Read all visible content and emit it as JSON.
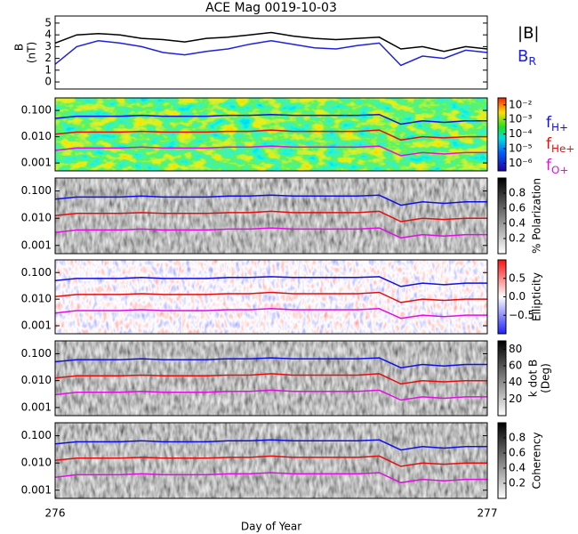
{
  "title": "ACE Mag 0019-10-03",
  "xlabel": "Day of Year",
  "xlim": [
    276,
    277
  ],
  "xticks": [
    276,
    277
  ],
  "x": [
    276.0,
    276.05,
    276.1,
    276.15,
    276.2,
    276.25,
    276.3,
    276.35,
    276.4,
    276.45,
    276.5,
    276.55,
    276.6,
    276.65,
    276.7,
    276.75,
    276.8,
    276.85,
    276.9,
    276.95,
    277.0
  ],
  "field": {
    "type": "line",
    "ylabel": "B",
    "yunit": "(nT)",
    "ylim": [
      -0.6,
      5.6
    ],
    "yticks": [
      0,
      1,
      2,
      3,
      4,
      5
    ],
    "series": [
      {
        "name": "|B|",
        "color": "#000000",
        "values": [
          3.3,
          4.0,
          4.1,
          4.0,
          3.7,
          3.6,
          3.4,
          3.7,
          3.8,
          4.0,
          4.2,
          3.9,
          3.7,
          3.6,
          3.7,
          3.8,
          2.8,
          3.0,
          2.6,
          3.0,
          2.8
        ]
      },
      {
        "name": "B",
        "subscript": "R",
        "color": "#2020e0",
        "values": [
          1.5,
          3.0,
          3.5,
          3.3,
          3.0,
          2.5,
          2.3,
          2.6,
          2.8,
          3.2,
          3.5,
          3.2,
          2.9,
          2.8,
          3.1,
          3.3,
          1.4,
          2.2,
          2.0,
          2.7,
          2.5
        ]
      }
    ]
  },
  "frequency": {
    "log": true,
    "ylim": [
      0.0005,
      0.3
    ],
    "yticks": [
      {
        "value": 0.1,
        "label": "0.100"
      },
      {
        "value": 0.01,
        "label": "0.010"
      },
      {
        "value": 0.001,
        "label": "0.001"
      }
    ],
    "series": [
      {
        "name": "f",
        "subscript": "H+",
        "color": "#1010e0",
        "values": [
          0.05,
          0.06,
          0.06,
          0.06,
          0.065,
          0.06,
          0.06,
          0.06,
          0.065,
          0.065,
          0.07,
          0.065,
          0.065,
          0.065,
          0.065,
          0.07,
          0.03,
          0.04,
          0.035,
          0.04,
          0.04
        ]
      },
      {
        "name": "f",
        "subscript": "He+",
        "color": "#e01010",
        "values": [
          0.0125,
          0.015,
          0.015,
          0.015,
          0.016,
          0.015,
          0.015,
          0.015,
          0.016,
          0.016,
          0.018,
          0.016,
          0.016,
          0.016,
          0.016,
          0.018,
          0.0075,
          0.01,
          0.009,
          0.01,
          0.01
        ]
      },
      {
        "name": "f",
        "subscript": "O+",
        "color": "#e010e0",
        "values": [
          0.003,
          0.0037,
          0.0037,
          0.0037,
          0.004,
          0.0037,
          0.0037,
          0.0037,
          0.004,
          0.004,
          0.0044,
          0.004,
          0.004,
          0.004,
          0.004,
          0.0044,
          0.0019,
          0.0025,
          0.0022,
          0.0025,
          0.0025
        ]
      }
    ]
  },
  "spectrograms": [
    {
      "type": "spectrogram",
      "colormap": "rainbow",
      "clog": true,
      "clim": [
        3e-07,
        0.03
      ],
      "cticks": [
        {
          "value": 0.01,
          "label": "10⁻²"
        },
        {
          "value": 0.001,
          "label": "10⁻³"
        },
        {
          "value": 0.0001,
          "label": "10⁻⁴"
        },
        {
          "value": 1e-05,
          "label": "10⁻⁵"
        },
        {
          "value": 1e-06,
          "label": "10⁻⁶"
        }
      ]
    },
    {
      "type": "spectrogram",
      "colormap": "gray",
      "colorbar_label": "% Polarization",
      "clim": [
        0,
        1
      ],
      "cticks": [
        0.2,
        0.4,
        0.6,
        0.8
      ]
    },
    {
      "type": "spectrogram",
      "colormap": "rwb",
      "colorbar_label": "Ellipticity",
      "clim": [
        -1,
        1
      ],
      "cticks": [
        {
          "value": -0.5,
          "label": "−0.5"
        },
        {
          "value": 0,
          "label": "0.0"
        },
        0.5
      ]
    },
    {
      "type": "spectrogram",
      "colormap": "gray",
      "colorbar_label": "k dot B",
      "colorbar_unit": "(Deg)",
      "clim": [
        0,
        90
      ],
      "cticks": [
        20,
        40,
        60,
        80
      ]
    },
    {
      "type": "spectrogram",
      "colormap": "gray",
      "colorbar_label": "Coherency",
      "clim": [
        0,
        1
      ],
      "cticks": [
        0.2,
        0.4,
        0.6,
        0.8
      ]
    }
  ]
}
